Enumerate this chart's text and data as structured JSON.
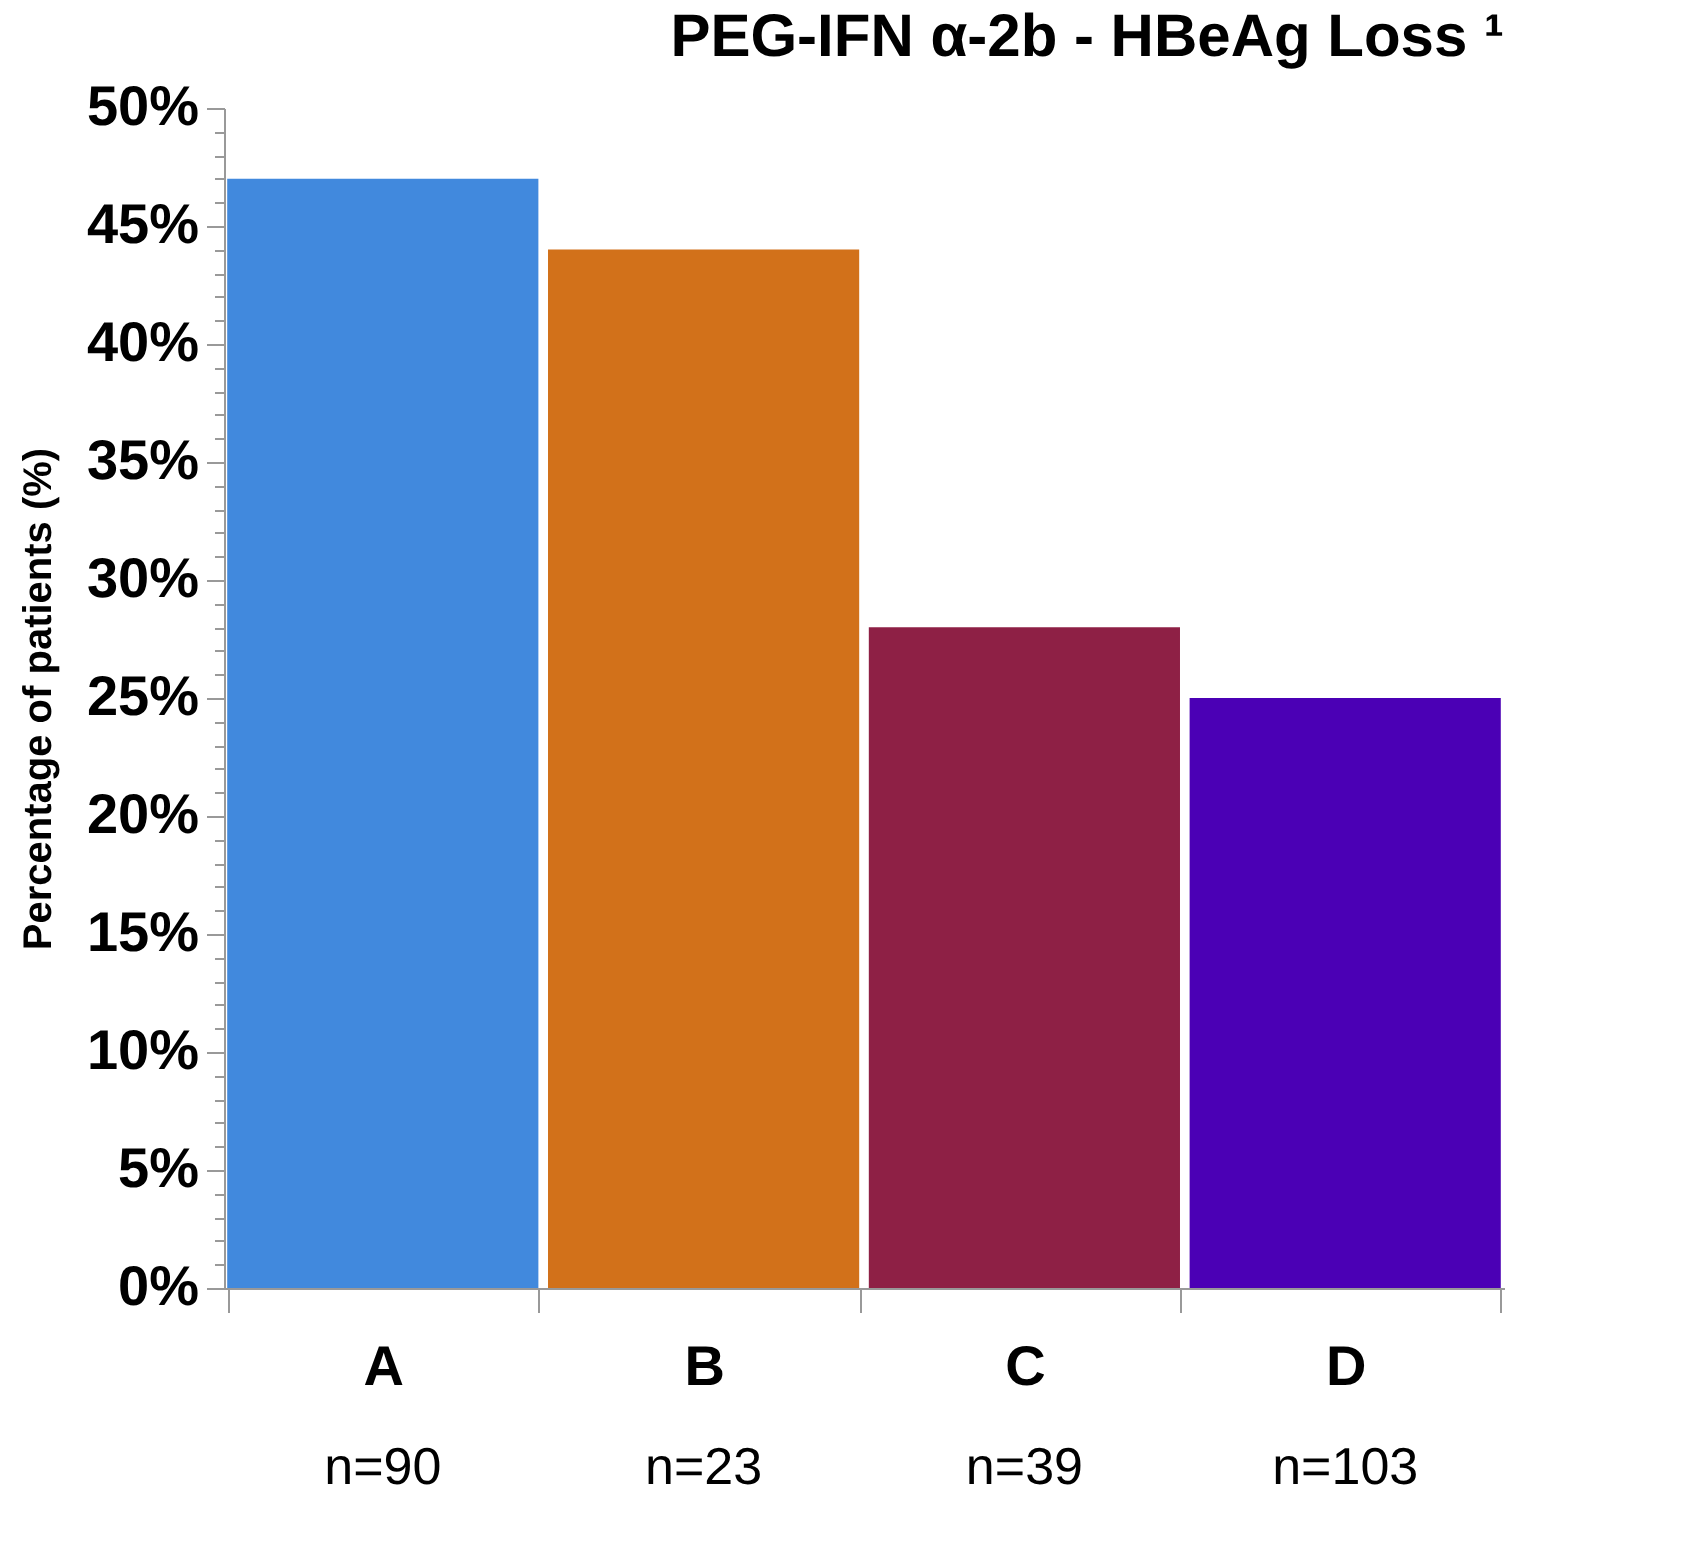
{
  "chart_data": {
    "type": "bar",
    "title": "PEG-IFN α-2b - HBeAg Loss ¹",
    "ylabel": "Percentage of patients (%)",
    "categories": [
      "A",
      "B",
      "C",
      "D"
    ],
    "values": [
      47,
      44,
      28,
      25
    ],
    "colors": [
      "#4189dd",
      "#d2711a",
      "#8e2045",
      "#4b00b5"
    ],
    "ylim": [
      0,
      50
    ],
    "yticks": [
      {
        "value": 0,
        "label": "0%"
      },
      {
        "value": 1,
        "label": null
      },
      {
        "value": 2,
        "label": null
      },
      {
        "value": 3,
        "label": null
      },
      {
        "value": 4,
        "label": null
      },
      {
        "value": 5,
        "label": "5%"
      },
      {
        "value": 6,
        "label": null
      },
      {
        "value": 7,
        "label": null
      },
      {
        "value": 8,
        "label": null
      },
      {
        "value": 9,
        "label": null
      },
      {
        "value": 10,
        "label": "10%"
      },
      {
        "value": 11,
        "label": null
      },
      {
        "value": 12,
        "label": null
      },
      {
        "value": 13,
        "label": null
      },
      {
        "value": 14,
        "label": null
      },
      {
        "value": 15,
        "label": "15%"
      },
      {
        "value": 16,
        "label": null
      },
      {
        "value": 17,
        "label": null
      },
      {
        "value": 18,
        "label": null
      },
      {
        "value": 19,
        "label": null
      },
      {
        "value": 20,
        "label": "20%"
      },
      {
        "value": 21,
        "label": null
      },
      {
        "value": 22,
        "label": null
      },
      {
        "value": 23,
        "label": null
      },
      {
        "value": 24,
        "label": null
      },
      {
        "value": 25,
        "label": "25%"
      },
      {
        "value": 26,
        "label": null
      },
      {
        "value": 27,
        "label": null
      },
      {
        "value": 28,
        "label": null
      },
      {
        "value": 29,
        "label": null
      },
      {
        "value": 30,
        "label": "30%"
      },
      {
        "value": 31,
        "label": null
      },
      {
        "value": 32,
        "label": null
      },
      {
        "value": 33,
        "label": null
      },
      {
        "value": 34,
        "label": null
      },
      {
        "value": 35,
        "label": "35%"
      },
      {
        "value": 36,
        "label": null
      },
      {
        "value": 37,
        "label": null
      },
      {
        "value": 38,
        "label": null
      },
      {
        "value": 39,
        "label": null
      },
      {
        "value": 40,
        "label": "40%"
      },
      {
        "value": 41,
        "label": null
      },
      {
        "value": 42,
        "label": null
      },
      {
        "value": 43,
        "label": null
      },
      {
        "value": 44,
        "label": null
      },
      {
        "value": 45,
        "label": "45%"
      },
      {
        "value": 46,
        "label": null
      },
      {
        "value": 47,
        "label": null
      },
      {
        "value": 48,
        "label": null
      },
      {
        "value": 49,
        "label": null
      },
      {
        "value": 50,
        "label": "50%"
      }
    ],
    "annotations": [
      "n=90",
      "n=23",
      "n=39",
      "n=103"
    ],
    "grid": false,
    "legend": false
  }
}
